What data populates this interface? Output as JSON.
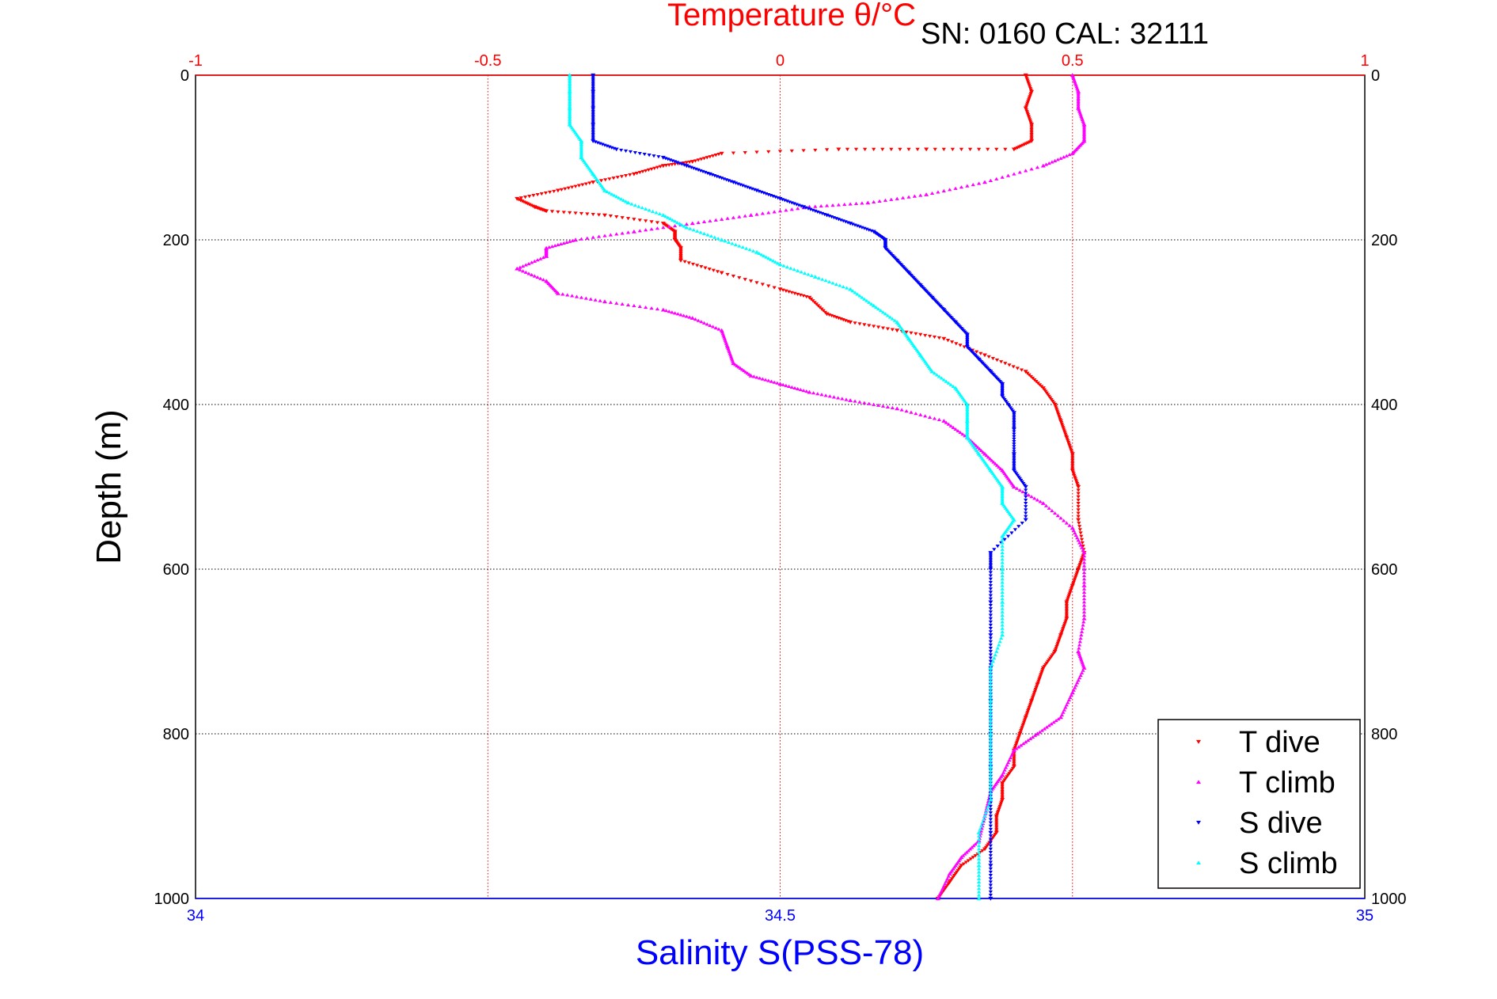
{
  "chart_data": {
    "type": "scatter",
    "title": "Temperature θ/°C",
    "subtitle": "SN: 0160  CAL: 32111",
    "ylabel": "Depth (m)",
    "xlabel_top": "Temperature θ/°C",
    "xlabel_bottom": "Salinity S(PSS-78)",
    "ylim": [
      0,
      1000
    ],
    "y_reversed": true,
    "xlim_top": [
      -1,
      1
    ],
    "xlim_bottom": [
      34,
      35
    ],
    "top_ticks": [
      -1,
      -0.5,
      0,
      0.5,
      1
    ],
    "bottom_ticks": [
      34,
      34.5,
      35
    ],
    "y_ticks": [
      0,
      200,
      400,
      600,
      800,
      1000
    ],
    "grid": true,
    "legend_position": "bottom-right",
    "series": [
      {
        "name": "T dive",
        "axis": "top",
        "color": "#ff0000",
        "marker": "triangle-down",
        "points": [
          [
            0.42,
            0
          ],
          [
            0.43,
            20
          ],
          [
            0.42,
            40
          ],
          [
            0.43,
            60
          ],
          [
            0.43,
            80
          ],
          [
            0.4,
            90
          ],
          [
            0.25,
            90
          ],
          [
            0.1,
            90
          ],
          [
            -0.1,
            95
          ],
          [
            -0.15,
            105
          ],
          [
            -0.2,
            110
          ],
          [
            -0.25,
            120
          ],
          [
            -0.32,
            130
          ],
          [
            -0.38,
            140
          ],
          [
            -0.45,
            150
          ],
          [
            -0.42,
            160
          ],
          [
            -0.4,
            165
          ],
          [
            -0.3,
            170
          ],
          [
            -0.2,
            180
          ],
          [
            -0.18,
            190
          ],
          [
            -0.18,
            200
          ],
          [
            -0.17,
            210
          ],
          [
            -0.17,
            225
          ],
          [
            -0.1,
            240
          ],
          [
            0.0,
            260
          ],
          [
            0.05,
            270
          ],
          [
            0.08,
            290
          ],
          [
            0.12,
            300
          ],
          [
            0.2,
            310
          ],
          [
            0.28,
            320
          ],
          [
            0.35,
            340
          ],
          [
            0.42,
            360
          ],
          [
            0.45,
            380
          ],
          [
            0.47,
            400
          ],
          [
            0.48,
            420
          ],
          [
            0.49,
            440
          ],
          [
            0.5,
            460
          ],
          [
            0.5,
            480
          ],
          [
            0.51,
            500
          ],
          [
            0.51,
            540
          ],
          [
            0.52,
            580
          ],
          [
            0.51,
            600
          ],
          [
            0.5,
            620
          ],
          [
            0.49,
            640
          ],
          [
            0.49,
            660
          ],
          [
            0.48,
            680
          ],
          [
            0.47,
            700
          ],
          [
            0.45,
            720
          ],
          [
            0.44,
            740
          ],
          [
            0.43,
            760
          ],
          [
            0.42,
            780
          ],
          [
            0.41,
            800
          ],
          [
            0.4,
            820
          ],
          [
            0.4,
            840
          ],
          [
            0.38,
            860
          ],
          [
            0.38,
            880
          ],
          [
            0.37,
            900
          ],
          [
            0.37,
            920
          ],
          [
            0.35,
            940
          ],
          [
            0.31,
            960
          ],
          [
            0.29,
            980
          ],
          [
            0.27,
            1000
          ]
        ]
      },
      {
        "name": "T climb",
        "axis": "top",
        "color": "#ff00ff",
        "marker": "triangle-up",
        "points": [
          [
            0.5,
            0
          ],
          [
            0.51,
            20
          ],
          [
            0.51,
            40
          ],
          [
            0.52,
            60
          ],
          [
            0.52,
            80
          ],
          [
            0.5,
            95
          ],
          [
            0.45,
            110
          ],
          [
            0.35,
            130
          ],
          [
            0.25,
            145
          ],
          [
            0.15,
            155
          ],
          [
            0.05,
            160
          ],
          [
            -0.05,
            170
          ],
          [
            -0.15,
            180
          ],
          [
            -0.25,
            190
          ],
          [
            -0.35,
            200
          ],
          [
            -0.4,
            210
          ],
          [
            -0.4,
            220
          ],
          [
            -0.45,
            235
          ],
          [
            -0.4,
            250
          ],
          [
            -0.38,
            265
          ],
          [
            -0.3,
            275
          ],
          [
            -0.2,
            285
          ],
          [
            -0.15,
            295
          ],
          [
            -0.1,
            310
          ],
          [
            -0.09,
            330
          ],
          [
            -0.08,
            350
          ],
          [
            -0.05,
            365
          ],
          [
            0.0,
            375
          ],
          [
            0.05,
            385
          ],
          [
            0.12,
            395
          ],
          [
            0.2,
            405
          ],
          [
            0.28,
            420
          ],
          [
            0.32,
            440
          ],
          [
            0.35,
            460
          ],
          [
            0.38,
            480
          ],
          [
            0.4,
            500
          ],
          [
            0.45,
            520
          ],
          [
            0.5,
            550
          ],
          [
            0.52,
            580
          ],
          [
            0.52,
            620
          ],
          [
            0.52,
            660
          ],
          [
            0.51,
            700
          ],
          [
            0.52,
            720
          ],
          [
            0.5,
            750
          ],
          [
            0.48,
            780
          ],
          [
            0.44,
            800
          ],
          [
            0.4,
            820
          ],
          [
            0.38,
            850
          ],
          [
            0.36,
            870
          ],
          [
            0.35,
            900
          ],
          [
            0.34,
            930
          ],
          [
            0.31,
            950
          ],
          [
            0.29,
            970
          ],
          [
            0.27,
            1000
          ]
        ]
      },
      {
        "name": "S dive",
        "axis": "bottom",
        "color": "#0000ff",
        "marker": "triangle-down",
        "points": [
          [
            34.34,
            0
          ],
          [
            34.34,
            20
          ],
          [
            34.34,
            40
          ],
          [
            34.34,
            60
          ],
          [
            34.34,
            80
          ],
          [
            34.36,
            90
          ],
          [
            34.4,
            100
          ],
          [
            34.42,
            110
          ],
          [
            34.44,
            120
          ],
          [
            34.46,
            130
          ],
          [
            34.48,
            140
          ],
          [
            34.5,
            150
          ],
          [
            34.52,
            160
          ],
          [
            34.54,
            170
          ],
          [
            34.56,
            180
          ],
          [
            34.58,
            190
          ],
          [
            34.59,
            200
          ],
          [
            34.59,
            210
          ],
          [
            34.6,
            225
          ],
          [
            34.61,
            240
          ],
          [
            34.62,
            255
          ],
          [
            34.63,
            270
          ],
          [
            34.64,
            285
          ],
          [
            34.65,
            300
          ],
          [
            34.66,
            315
          ],
          [
            34.66,
            330
          ],
          [
            34.67,
            345
          ],
          [
            34.68,
            360
          ],
          [
            34.69,
            375
          ],
          [
            34.69,
            390
          ],
          [
            34.7,
            410
          ],
          [
            34.7,
            430
          ],
          [
            34.7,
            460
          ],
          [
            34.7,
            480
          ],
          [
            34.71,
            500
          ],
          [
            34.71,
            540
          ],
          [
            34.68,
            580
          ],
          [
            34.68,
            600
          ],
          [
            34.68,
            640
          ],
          [
            34.68,
            680
          ],
          [
            34.68,
            720
          ],
          [
            34.68,
            760
          ],
          [
            34.68,
            800
          ],
          [
            34.68,
            840
          ],
          [
            34.68,
            880
          ],
          [
            34.68,
            920
          ],
          [
            34.68,
            960
          ],
          [
            34.68,
            1000
          ]
        ]
      },
      {
        "name": "S climb",
        "axis": "bottom",
        "color": "#00ffff",
        "marker": "triangle-up",
        "points": [
          [
            34.32,
            0
          ],
          [
            34.32,
            20
          ],
          [
            34.32,
            40
          ],
          [
            34.32,
            60
          ],
          [
            34.33,
            80
          ],
          [
            34.33,
            100
          ],
          [
            34.34,
            120
          ],
          [
            34.35,
            140
          ],
          [
            34.37,
            155
          ],
          [
            34.4,
            170
          ],
          [
            34.42,
            185
          ],
          [
            34.45,
            200
          ],
          [
            34.48,
            215
          ],
          [
            34.5,
            230
          ],
          [
            34.53,
            245
          ],
          [
            34.56,
            260
          ],
          [
            34.58,
            280
          ],
          [
            34.6,
            300
          ],
          [
            34.61,
            320
          ],
          [
            34.62,
            340
          ],
          [
            34.63,
            360
          ],
          [
            34.65,
            380
          ],
          [
            34.66,
            400
          ],
          [
            34.66,
            420
          ],
          [
            34.66,
            440
          ],
          [
            34.67,
            460
          ],
          [
            34.68,
            480
          ],
          [
            34.69,
            500
          ],
          [
            34.69,
            520
          ],
          [
            34.7,
            540
          ],
          [
            34.69,
            560
          ],
          [
            34.69,
            600
          ],
          [
            34.69,
            640
          ],
          [
            34.69,
            680
          ],
          [
            34.68,
            720
          ],
          [
            34.68,
            760
          ],
          [
            34.68,
            800
          ],
          [
            34.68,
            840
          ],
          [
            34.68,
            880
          ],
          [
            34.67,
            920
          ],
          [
            34.67,
            960
          ],
          [
            34.67,
            1000
          ]
        ]
      }
    ]
  }
}
